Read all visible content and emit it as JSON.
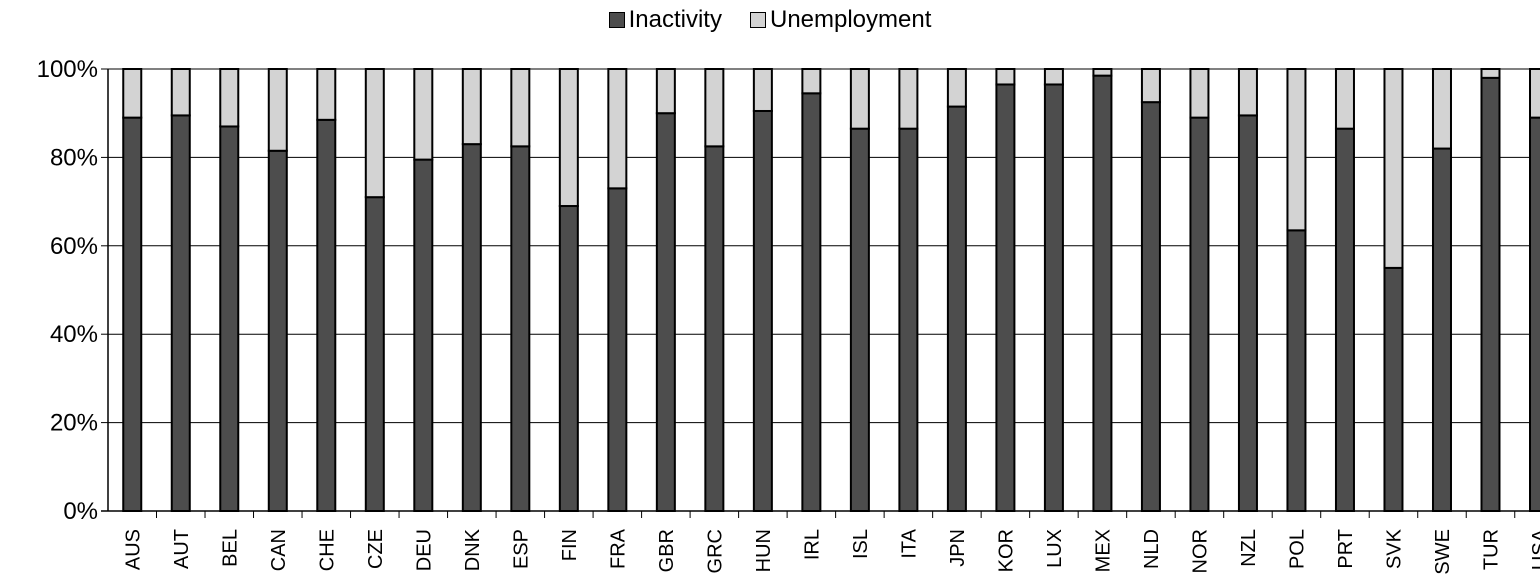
{
  "chart_data": {
    "type": "bar",
    "stacked": true,
    "percent_stacked": true,
    "categories": [
      "AUS",
      "AUT",
      "BEL",
      "CAN",
      "CHE",
      "CZE",
      "DEU",
      "DNK",
      "ESP",
      "FIN",
      "FRA",
      "GBR",
      "GRC",
      "HUN",
      "IRL",
      "ISL",
      "ITA",
      "JPN",
      "KOR",
      "LUX",
      "MEX",
      "NLD",
      "NOR",
      "NZL",
      "POL",
      "PRT",
      "SVK",
      "SWE",
      "TUR",
      "USA"
    ],
    "series": [
      {
        "name": "Inactivity",
        "color": "#4d4d4d",
        "values": [
          89,
          89.5,
          87,
          81.5,
          88.5,
          71,
          79.5,
          83,
          82.5,
          69,
          73,
          90,
          82.5,
          90.5,
          94.5,
          86.5,
          86.5,
          91.5,
          96.5,
          96.5,
          98.5,
          92.5,
          89,
          89.5,
          63.5,
          86.5,
          55,
          82,
          98,
          89
        ]
      },
      {
        "name": "Unemployment",
        "color": "#d3d3d3",
        "values": [
          11,
          10.5,
          13,
          18.5,
          11.5,
          29,
          20.5,
          17,
          17.5,
          31,
          27,
          10,
          17.5,
          9.5,
          5.5,
          13.5,
          13.5,
          8.5,
          3.5,
          3.5,
          1.5,
          7.5,
          11,
          10.5,
          36.5,
          13.5,
          45,
          18,
          2,
          11
        ]
      }
    ],
    "ylim": [
      0,
      100
    ],
    "yticks": [
      "0%",
      "20%",
      "40%",
      "60%",
      "80%",
      "100%"
    ],
    "ytick_values": [
      0,
      20,
      40,
      60,
      80,
      100
    ],
    "grid": true,
    "legend_position": "top-center",
    "title": "",
    "xlabel": "",
    "ylabel": ""
  }
}
